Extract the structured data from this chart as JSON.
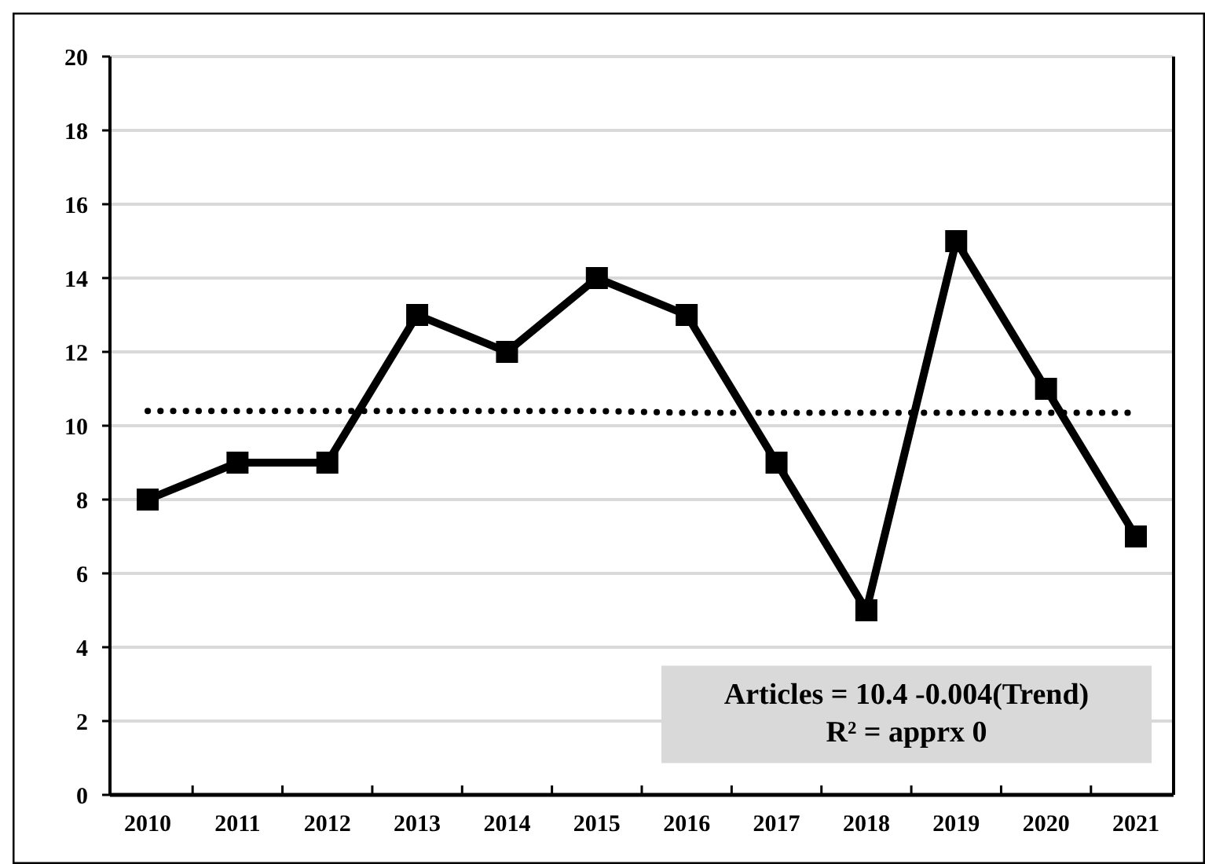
{
  "chart_data": {
    "type": "line",
    "categories": [
      "2010",
      "2011",
      "2012",
      "2013",
      "2014",
      "2015",
      "2016",
      "2017",
      "2018",
      "2019",
      "2020",
      "2021"
    ],
    "series": [
      {
        "color": "#000000",
        "values": [
          8,
          9,
          9,
          13,
          12,
          14,
          13,
          9,
          5,
          15,
          11,
          7
        ],
        "marker": "square",
        "line_style": "solid"
      },
      {
        "color": "#000000",
        "values": [
          10.4,
          10.4,
          10.4,
          10.4,
          10.4,
          10.4,
          10.35,
          10.35,
          10.35,
          10.35,
          10.35,
          10.35
        ],
        "marker": "none",
        "line_style": "dotted"
      }
    ],
    "ylim": [
      0,
      20
    ],
    "yticks": [
      0,
      2,
      4,
      6,
      8,
      10,
      12,
      14,
      16,
      18,
      20
    ],
    "grid": "y",
    "annotations": [
      "Articles = 10.4 -0.004(Trend)\nR² = apprx 0"
    ]
  }
}
